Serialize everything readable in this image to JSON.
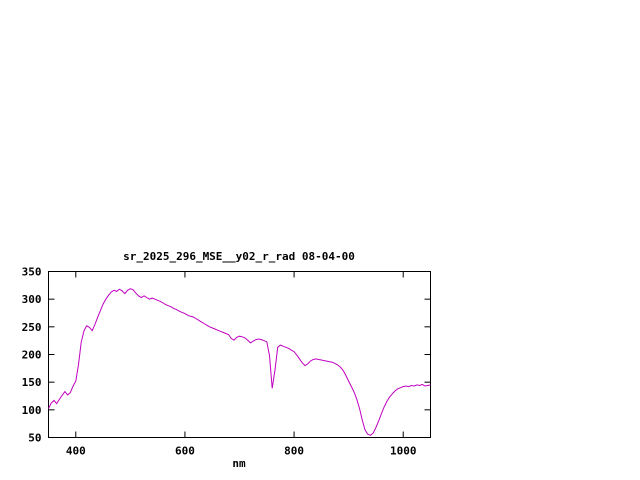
{
  "chart_data": {
    "type": "line",
    "title": "sr_2025_296_MSE__y02_r_rad 08-04-00",
    "xlabel": "nm",
    "ylabel": "",
    "xlim": [
      350,
      1050
    ],
    "ylim": [
      50,
      350
    ],
    "xticks": [
      400,
      600,
      800,
      1000
    ],
    "yticks": [
      50,
      100,
      150,
      200,
      250,
      300,
      350
    ],
    "grid": false,
    "legend": "none",
    "line_color": "#c000c0",
    "x": [
      350,
      355,
      360,
      365,
      370,
      375,
      380,
      385,
      390,
      395,
      400,
      405,
      410,
      415,
      420,
      425,
      430,
      435,
      440,
      445,
      450,
      455,
      460,
      465,
      470,
      475,
      480,
      485,
      490,
      495,
      500,
      505,
      510,
      515,
      520,
      525,
      530,
      535,
      540,
      545,
      550,
      555,
      560,
      565,
      570,
      575,
      580,
      585,
      590,
      595,
      600,
      605,
      610,
      615,
      620,
      625,
      630,
      635,
      640,
      645,
      650,
      655,
      660,
      665,
      670,
      675,
      680,
      685,
      690,
      695,
      700,
      705,
      710,
      715,
      720,
      725,
      730,
      735,
      740,
      745,
      750,
      755,
      760,
      765,
      770,
      775,
      780,
      785,
      790,
      795,
      800,
      805,
      810,
      815,
      820,
      825,
      830,
      835,
      840,
      845,
      850,
      855,
      860,
      865,
      870,
      875,
      880,
      885,
      890,
      895,
      900,
      905,
      910,
      915,
      920,
      925,
      930,
      935,
      940,
      945,
      950,
      955,
      960,
      965,
      970,
      975,
      980,
      985,
      990,
      995,
      1000,
      1005,
      1010,
      1015,
      1020,
      1025,
      1030,
      1035,
      1040,
      1045,
      1050
    ],
    "values": [
      102,
      112,
      117,
      111,
      119,
      126,
      133,
      127,
      131,
      143,
      152,
      182,
      222,
      243,
      252,
      249,
      243,
      254,
      267,
      279,
      291,
      300,
      307,
      313,
      316,
      314,
      318,
      315,
      310,
      316,
      319,
      317,
      311,
      306,
      303,
      306,
      303,
      300,
      302,
      300,
      298,
      296,
      293,
      290,
      288,
      286,
      283,
      281,
      278,
      276,
      274,
      271,
      269,
      268,
      265,
      262,
      259,
      256,
      253,
      250,
      248,
      246,
      244,
      242,
      240,
      238,
      236,
      229,
      226,
      231,
      233,
      232,
      230,
      226,
      221,
      224,
      227,
      228,
      227,
      225,
      223,
      198,
      139,
      172,
      213,
      217,
      215,
      213,
      211,
      208,
      205,
      199,
      192,
      185,
      180,
      183,
      188,
      191,
      192,
      191,
      190,
      189,
      188,
      187,
      186,
      184,
      181,
      177,
      171,
      162,
      152,
      142,
      132,
      119,
      102,
      81,
      64,
      56,
      54,
      58,
      68,
      80,
      93,
      105,
      115,
      123,
      129,
      134,
      138,
      140,
      142,
      143,
      142,
      144,
      143,
      145,
      144,
      146,
      143,
      144,
      145
    ]
  }
}
